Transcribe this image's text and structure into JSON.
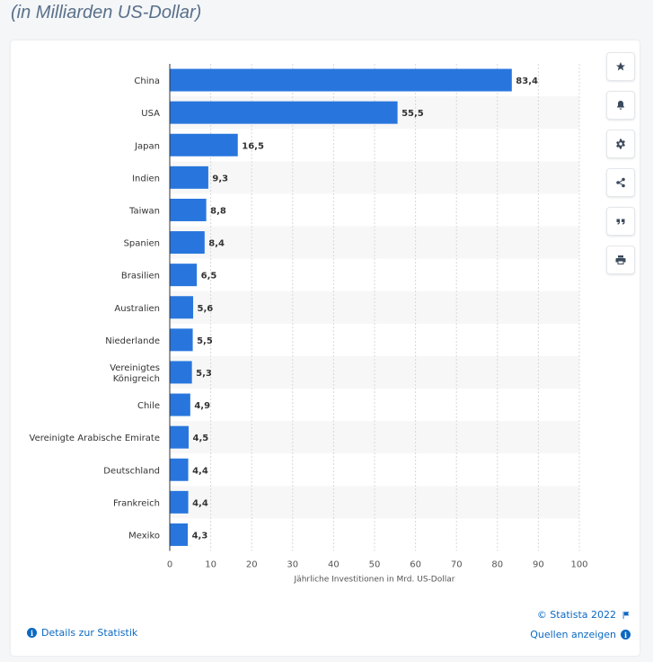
{
  "header": {
    "subtitle": "(in Milliarden US-Dollar)"
  },
  "chart_data": {
    "type": "bar",
    "orientation": "horizontal",
    "categories": [
      "China",
      "USA",
      "Japan",
      "Indien",
      "Taiwan",
      "Spanien",
      "Brasilien",
      "Australien",
      "Niederlande",
      "Vereinigtes Königreich",
      "Chile",
      "Vereinigte Arabische Emirate",
      "Deutschland",
      "Frankreich",
      "Mexiko"
    ],
    "values": [
      83.4,
      55.5,
      16.5,
      9.3,
      8.8,
      8.4,
      6.5,
      5.6,
      5.5,
      5.3,
      4.9,
      4.5,
      4.4,
      4.4,
      4.3
    ],
    "value_labels": [
      "83,4",
      "55,5",
      "16,5",
      "9,3",
      "8,8",
      "8,4",
      "6,5",
      "5,6",
      "5,5",
      "5,3",
      "4,9",
      "4,5",
      "4,4",
      "4,4",
      "4,3"
    ],
    "xlim": [
      0,
      100
    ],
    "xticks": [
      0,
      10,
      20,
      30,
      40,
      50,
      60,
      70,
      80,
      90,
      100
    ],
    "xlabel": "Jährliche Investitionen in Mrd. US-Dollar",
    "ylabel": "",
    "bar_color": "#2876dd",
    "grid": true
  },
  "footer": {
    "copyright": "© Statista 2022",
    "details_link": "Details zur Statistik",
    "sources_link": "Quellen anzeigen"
  },
  "sidebar": {
    "buttons": [
      {
        "name": "star-icon"
      },
      {
        "name": "bell-icon"
      },
      {
        "name": "gear-icon"
      },
      {
        "name": "share-icon"
      },
      {
        "name": "quote-icon"
      },
      {
        "name": "print-icon"
      }
    ]
  }
}
